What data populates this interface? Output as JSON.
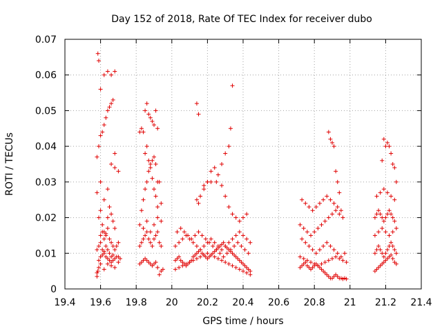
{
  "chart_data": {
    "type": "scatter",
    "title": "Day 152 of 2018, Rate Of TEC Index for receiver dubo",
    "xlabel": "GPS time / hours",
    "ylabel": "ROTI / TECUs",
    "xlim": [
      19.4,
      21.4
    ],
    "ylim": [
      0,
      0.07
    ],
    "xticks": [
      "19.4",
      "19.6",
      "19.8",
      "20",
      "20.2",
      "20.4",
      "20.6",
      "20.8",
      "21",
      "21.2",
      "21.4"
    ],
    "yticks": [
      "0",
      "0.01",
      "0.02",
      "0.03",
      "0.04",
      "0.05",
      "0.06",
      "0.07"
    ],
    "grid": true,
    "marker": "+",
    "color": "#e00000",
    "series": [
      {
        "name": "ROTI",
        "x": [
          19.58,
          19.585,
          19.59,
          19.6,
          19.61,
          19.62,
          19.63,
          19.64,
          19.65,
          19.66,
          19.67,
          19.68,
          19.69,
          19.7,
          19.71,
          19.58,
          19.59,
          19.6,
          19.61,
          19.62,
          19.63,
          19.64,
          19.65,
          19.66,
          19.67,
          19.68,
          19.69,
          19.7,
          19.59,
          19.6,
          19.61,
          19.62,
          19.63,
          19.64,
          19.65,
          19.66,
          19.67,
          19.68,
          19.58,
          19.6,
          19.62,
          19.64,
          19.66,
          19.68,
          19.7,
          19.58,
          19.59,
          19.6,
          19.61,
          19.62,
          19.63,
          19.64,
          19.65,
          19.66,
          19.67,
          19.68,
          19.585,
          19.59,
          19.6,
          19.62,
          19.64,
          19.66,
          19.68,
          19.58,
          19.59,
          19.6,
          19.62,
          19.64,
          19.66,
          19.68,
          19.7,
          19.6,
          19.61,
          19.62,
          19.63,
          19.64,
          19.65,
          19.66,
          19.67,
          19.82,
          19.83,
          19.84,
          19.85,
          19.86,
          19.87,
          19.88,
          19.89,
          19.9,
          19.91,
          19.92,
          19.93,
          19.94,
          19.95,
          19.82,
          19.83,
          19.84,
          19.85,
          19.86,
          19.87,
          19.88,
          19.89,
          19.9,
          19.91,
          19.92,
          19.93,
          19.94,
          19.82,
          19.84,
          19.86,
          19.88,
          19.9,
          19.92,
          19.94,
          19.83,
          19.84,
          19.85,
          19.86,
          19.87,
          19.88,
          19.89,
          19.9,
          19.91,
          19.92,
          19.82,
          19.83,
          19.84,
          19.85,
          19.86,
          19.87,
          19.88,
          19.89,
          19.9,
          19.91,
          19.92,
          19.93,
          19.94,
          19.85,
          19.86,
          19.87,
          19.88,
          19.89,
          19.9,
          19.91,
          19.92,
          20.02,
          20.03,
          20.04,
          20.05,
          20.06,
          20.07,
          20.08,
          20.09,
          20.1,
          20.11,
          20.12,
          20.13,
          20.14,
          20.15,
          20.16,
          20.17,
          20.18,
          20.19,
          20.2,
          20.21,
          20.22,
          20.23,
          20.24,
          20.25,
          20.26,
          20.27,
          20.28,
          20.29,
          20.3,
          20.31,
          20.32,
          20.33,
          20.34,
          20.35,
          20.36,
          20.37,
          20.38,
          20.39,
          20.4,
          20.41,
          20.42,
          20.43,
          20.44,
          20.02,
          20.04,
          20.06,
          20.08,
          20.1,
          20.12,
          20.14,
          20.16,
          20.18,
          20.2,
          20.22,
          20.24,
          20.26,
          20.28,
          20.3,
          20.32,
          20.34,
          20.36,
          20.38,
          20.4,
          20.42,
          20.44,
          20.03,
          20.05,
          20.07,
          20.09,
          20.11,
          20.13,
          20.15,
          20.17,
          20.19,
          20.21,
          20.23,
          20.25,
          20.27,
          20.29,
          20.31,
          20.33,
          20.35,
          20.37,
          20.39,
          20.41,
          20.43,
          20.02,
          20.04,
          20.06,
          20.08,
          20.1,
          20.12,
          20.14,
          20.16,
          20.18,
          20.2,
          20.22,
          20.24,
          20.26,
          20.28,
          20.3,
          20.32,
          20.34,
          20.36,
          20.38,
          20.4,
          20.42,
          20.44,
          20.14,
          20.15,
          20.16,
          20.18,
          20.2,
          20.22,
          20.24,
          20.26,
          20.28,
          20.3,
          20.32,
          20.34,
          20.36,
          20.38,
          20.4,
          20.42,
          20.14,
          20.15,
          20.34,
          20.33,
          20.32,
          20.3,
          20.28,
          20.25,
          20.22,
          20.2,
          20.18,
          20.72,
          20.73,
          20.74,
          20.75,
          20.76,
          20.77,
          20.78,
          20.79,
          20.8,
          20.81,
          20.82,
          20.83,
          20.84,
          20.85,
          20.86,
          20.87,
          20.88,
          20.89,
          20.9,
          20.91,
          20.92,
          20.93,
          20.94,
          20.95,
          20.96,
          20.97,
          20.98,
          20.72,
          20.74,
          20.76,
          20.78,
          20.8,
          20.82,
          20.84,
          20.86,
          20.88,
          20.9,
          20.92,
          20.94,
          20.96,
          20.98,
          20.73,
          20.75,
          20.77,
          20.79,
          20.81,
          20.83,
          20.85,
          20.87,
          20.89,
          20.91,
          20.93,
          20.95,
          20.97,
          20.72,
          20.74,
          20.76,
          20.78,
          20.8,
          20.82,
          20.84,
          20.86,
          20.88,
          20.9,
          20.92,
          20.94,
          20.96,
          20.73,
          20.75,
          20.77,
          20.79,
          20.81,
          20.83,
          20.85,
          20.87,
          20.89,
          20.91,
          20.93,
          20.95,
          20.88,
          20.89,
          20.9,
          20.91,
          20.92,
          20.93,
          20.94,
          21.14,
          21.15,
          21.16,
          21.17,
          21.18,
          21.19,
          21.2,
          21.21,
          21.22,
          21.23,
          21.24,
          21.25,
          21.26,
          21.14,
          21.15,
          21.16,
          21.17,
          21.18,
          21.19,
          21.2,
          21.21,
          21.22,
          21.23,
          21.24,
          21.25,
          21.26,
          21.14,
          21.16,
          21.18,
          21.2,
          21.22,
          21.24,
          21.26,
          21.14,
          21.15,
          21.16,
          21.17,
          21.18,
          21.19,
          21.2,
          21.21,
          21.22,
          21.23,
          21.24,
          21.25,
          21.15,
          21.17,
          21.19,
          21.21,
          21.23,
          21.25,
          21.2,
          21.21,
          21.22,
          21.23,
          21.24,
          21.25,
          21.26,
          21.19,
          21.18
        ],
        "y": [
          0.0035,
          0.005,
          0.008,
          0.009,
          0.0095,
          0.01,
          0.009,
          0.0085,
          0.008,
          0.0075,
          0.008,
          0.0085,
          0.009,
          0.009,
          0.0085,
          0.011,
          0.012,
          0.013,
          0.011,
          0.0105,
          0.012,
          0.011,
          0.01,
          0.009,
          0.0095,
          0.011,
          0.012,
          0.013,
          0.02,
          0.022,
          0.018,
          0.016,
          0.015,
          0.02,
          0.023,
          0.021,
          0.019,
          0.017,
          0.027,
          0.03,
          0.025,
          0.028,
          0.035,
          0.034,
          0.033,
          0.037,
          0.04,
          0.043,
          0.044,
          0.046,
          0.048,
          0.05,
          0.051,
          0.052,
          0.053,
          0.038,
          0.066,
          0.064,
          0.056,
          0.06,
          0.061,
          0.06,
          0.061,
          0.0045,
          0.006,
          0.007,
          0.0055,
          0.007,
          0.0065,
          0.006,
          0.0075,
          0.015,
          0.016,
          0.014,
          0.0155,
          0.017,
          0.014,
          0.013,
          0.012,
          0.007,
          0.0075,
          0.008,
          0.0085,
          0.008,
          0.0075,
          0.007,
          0.0065,
          0.007,
          0.0075,
          0.006,
          0.004,
          0.005,
          0.0055,
          0.012,
          0.013,
          0.014,
          0.015,
          0.016,
          0.014,
          0.013,
          0.012,
          0.014,
          0.015,
          0.016,
          0.013,
          0.012,
          0.018,
          0.017,
          0.019,
          0.016,
          0.018,
          0.02,
          0.019,
          0.022,
          0.025,
          0.028,
          0.03,
          0.033,
          0.035,
          0.036,
          0.037,
          0.035,
          0.03,
          0.044,
          0.045,
          0.044,
          0.05,
          0.052,
          0.049,
          0.048,
          0.047,
          0.046,
          0.05,
          0.045,
          0.03,
          0.024,
          0.038,
          0.04,
          0.036,
          0.034,
          0.031,
          0.028,
          0.026,
          0.023,
          0.008,
          0.0085,
          0.009,
          0.008,
          0.0075,
          0.007,
          0.0065,
          0.007,
          0.0075,
          0.008,
          0.009,
          0.0095,
          0.01,
          0.0105,
          0.011,
          0.01,
          0.0095,
          0.009,
          0.0085,
          0.009,
          0.0095,
          0.01,
          0.0105,
          0.011,
          0.0115,
          0.012,
          0.0125,
          0.013,
          0.012,
          0.0115,
          0.011,
          0.0105,
          0.01,
          0.0095,
          0.009,
          0.0085,
          0.008,
          0.0075,
          0.007,
          0.0065,
          0.006,
          0.0055,
          0.005,
          0.012,
          0.013,
          0.014,
          0.015,
          0.014,
          0.013,
          0.012,
          0.011,
          0.012,
          0.013,
          0.014,
          0.013,
          0.012,
          0.011,
          0.012,
          0.013,
          0.014,
          0.015,
          0.016,
          0.015,
          0.014,
          0.013,
          0.016,
          0.017,
          0.016,
          0.015,
          0.014,
          0.015,
          0.016,
          0.015,
          0.014,
          0.013,
          0.012,
          0.011,
          0.01,
          0.009,
          0.01,
          0.011,
          0.012,
          0.013,
          0.012,
          0.011,
          0.01,
          0.0055,
          0.006,
          0.0065,
          0.007,
          0.0075,
          0.008,
          0.0085,
          0.009,
          0.0095,
          0.01,
          0.0095,
          0.009,
          0.0085,
          0.008,
          0.0075,
          0.007,
          0.0065,
          0.006,
          0.0055,
          0.005,
          0.0045,
          0.004,
          0.025,
          0.024,
          0.026,
          0.028,
          0.03,
          0.033,
          0.034,
          0.032,
          0.029,
          0.026,
          0.023,
          0.021,
          0.02,
          0.019,
          0.02,
          0.021,
          0.052,
          0.049,
          0.057,
          0.045,
          0.04,
          0.038,
          0.035,
          0.03,
          0.03,
          0.03,
          0.029,
          0.006,
          0.0065,
          0.007,
          0.0075,
          0.0065,
          0.006,
          0.0055,
          0.006,
          0.0065,
          0.007,
          0.0065,
          0.006,
          0.0055,
          0.005,
          0.0045,
          0.004,
          0.0035,
          0.003,
          0.003,
          0.0035,
          0.004,
          0.0035,
          0.003,
          0.003,
          0.0028,
          0.003,
          0.0028,
          0.009,
          0.0085,
          0.008,
          0.0075,
          0.007,
          0.0065,
          0.007,
          0.0075,
          0.008,
          0.0085,
          0.009,
          0.0085,
          0.008,
          0.0075,
          0.014,
          0.013,
          0.012,
          0.011,
          0.01,
          0.011,
          0.012,
          0.013,
          0.012,
          0.011,
          0.01,
          0.009,
          0.01,
          0.018,
          0.017,
          0.016,
          0.015,
          0.016,
          0.017,
          0.018,
          0.019,
          0.02,
          0.021,
          0.022,
          0.021,
          0.02,
          0.025,
          0.024,
          0.023,
          0.022,
          0.023,
          0.024,
          0.025,
          0.026,
          0.025,
          0.024,
          0.023,
          0.022,
          0.044,
          0.042,
          0.041,
          0.04,
          0.033,
          0.03,
          0.027,
          0.005,
          0.0055,
          0.006,
          0.0065,
          0.007,
          0.0075,
          0.008,
          0.0085,
          0.009,
          0.0095,
          0.0085,
          0.0075,
          0.007,
          0.01,
          0.011,
          0.012,
          0.011,
          0.01,
          0.009,
          0.01,
          0.011,
          0.012,
          0.013,
          0.012,
          0.011,
          0.01,
          0.015,
          0.016,
          0.017,
          0.016,
          0.015,
          0.016,
          0.017,
          0.02,
          0.021,
          0.022,
          0.021,
          0.02,
          0.019,
          0.02,
          0.021,
          0.022,
          0.021,
          0.02,
          0.019,
          0.026,
          0.027,
          0.028,
          0.027,
          0.026,
          0.025,
          0.04,
          0.041,
          0.04,
          0.038,
          0.035,
          0.034,
          0.03,
          0.042,
          0.036
        ]
      }
    ]
  }
}
